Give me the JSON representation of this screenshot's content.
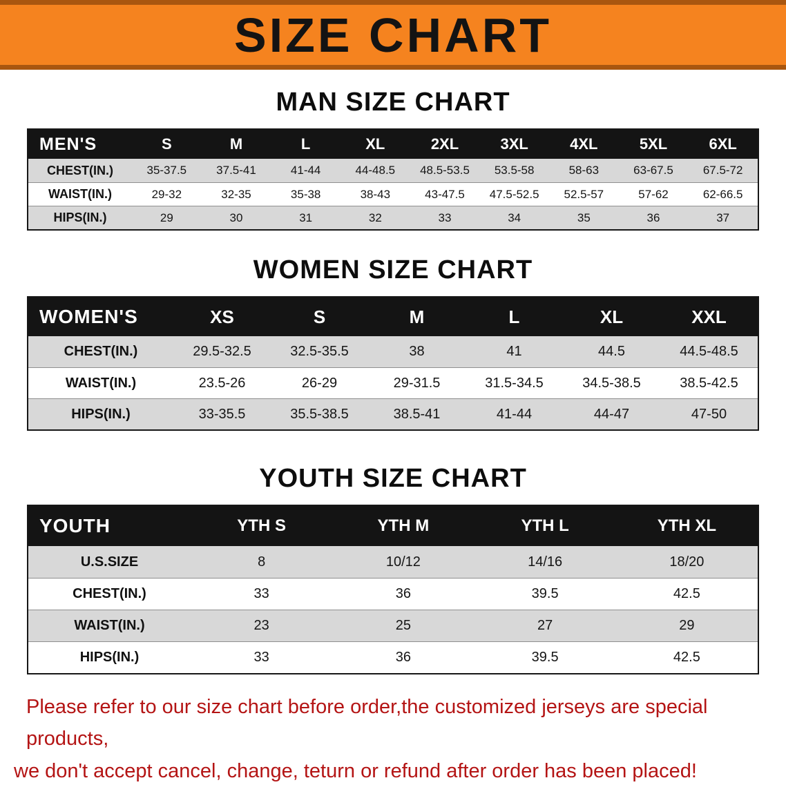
{
  "banner": {
    "title": "SIZE CHART"
  },
  "men": {
    "heading": "MAN SIZE CHART",
    "header": [
      "MEN'S",
      "S",
      "M",
      "L",
      "XL",
      "2XL",
      "3XL",
      "4XL",
      "5XL",
      "6XL"
    ],
    "rows": [
      {
        "label": "CHEST(IN.)",
        "values": [
          "35-37.5",
          "37.5-41",
          "41-44",
          "44-48.5",
          "48.5-53.5",
          "53.5-58",
          "58-63",
          "63-67.5",
          "67.5-72"
        ]
      },
      {
        "label": "WAIST(IN.)",
        "values": [
          "29-32",
          "32-35",
          "35-38",
          "38-43",
          "43-47.5",
          "47.5-52.5",
          "52.5-57",
          "57-62",
          "62-66.5"
        ]
      },
      {
        "label": "HIPS(IN.)",
        "values": [
          "29",
          "30",
          "31",
          "32",
          "33",
          "34",
          "35",
          "36",
          "37"
        ]
      }
    ]
  },
  "women": {
    "heading": "WOMEN SIZE CHART",
    "header": [
      "WOMEN'S",
      "XS",
      "S",
      "M",
      "L",
      "XL",
      "XXL"
    ],
    "rows": [
      {
        "label": "CHEST(IN.)",
        "values": [
          "29.5-32.5",
          "32.5-35.5",
          "38",
          "41",
          "44.5",
          "44.5-48.5"
        ]
      },
      {
        "label": "WAIST(IN.)",
        "values": [
          "23.5-26",
          "26-29",
          "29-31.5",
          "31.5-34.5",
          "34.5-38.5",
          "38.5-42.5"
        ]
      },
      {
        "label": "HIPS(IN.)",
        "values": [
          "33-35.5",
          "35.5-38.5",
          "38.5-41",
          "41-44",
          "44-47",
          "47-50"
        ]
      }
    ]
  },
  "youth": {
    "heading": "YOUTH SIZE CHART",
    "header": [
      "YOUTH",
      "YTH S",
      "YTH M",
      "YTH L",
      "YTH XL"
    ],
    "rows": [
      {
        "label": "U.S.SIZE",
        "values": [
          "8",
          "10/12",
          "14/16",
          "18/20"
        ]
      },
      {
        "label": "CHEST(IN.)",
        "values": [
          "33",
          "36",
          "39.5",
          "42.5"
        ]
      },
      {
        "label": "WAIST(IN.)",
        "values": [
          "23",
          "25",
          "27",
          "29"
        ]
      },
      {
        "label": "HIPS(IN.)",
        "values": [
          "33",
          "36",
          "39.5",
          "42.5"
        ]
      }
    ]
  },
  "disclaimer": {
    "line1": "Please refer to our size chart before order,the customized jerseys are special products,",
    "line2": "we don't accept cancel, change, teturn or refund after order has been placed!"
  },
  "colors": {
    "banner_orange": "#F5831F",
    "banner_edge": "#A9560F",
    "header_black": "#141414",
    "row_shade": "#D8D8D8",
    "disclaimer_red": "#B41414"
  }
}
